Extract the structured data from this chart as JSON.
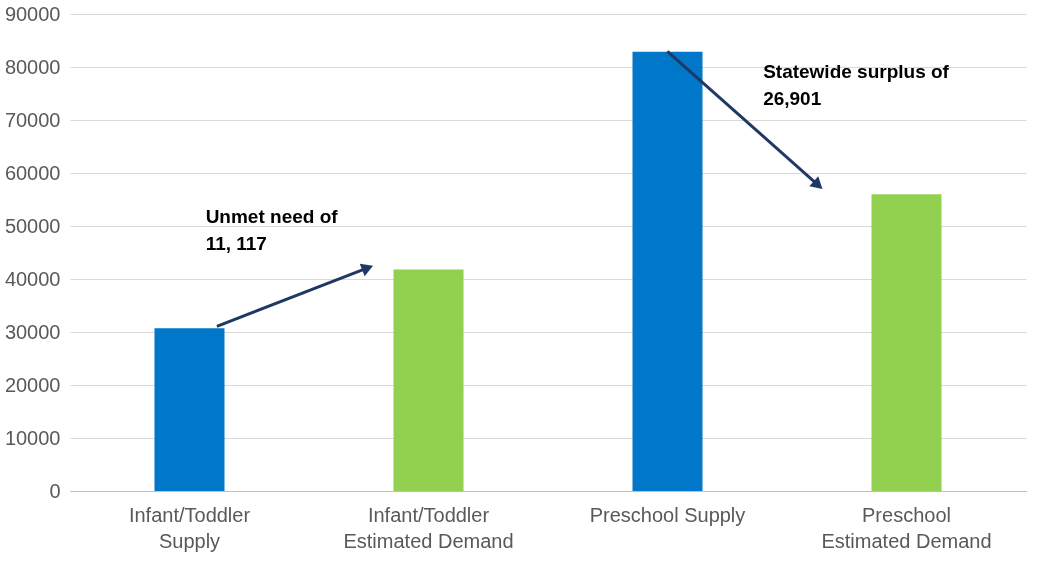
{
  "chart_data": {
    "type": "bar",
    "categories": [
      "Infant/Toddler\nSupply",
      "Infant/Toddler\nEstimated Demand",
      "Preschool Supply",
      "Preschool\nEstimated Demand"
    ],
    "values": [
      30700,
      41800,
      82900,
      56000
    ],
    "colors": [
      "#0077c8",
      "#92d050",
      "#0077c8",
      "#92d050"
    ],
    "ylim": [
      0,
      90000
    ],
    "yticks": [
      0,
      10000,
      20000,
      30000,
      40000,
      50000,
      60000,
      70000,
      80000,
      90000
    ],
    "grid": "y",
    "annotations": [
      "Unmet need of\n11, 117",
      "Statewide surplus of\n26,901"
    ]
  }
}
